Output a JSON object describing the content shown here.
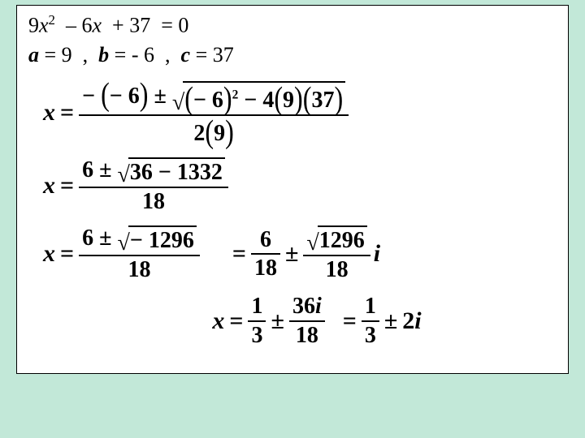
{
  "background_color": "#c2e8d8",
  "card_bg": "#ffffff",
  "border_color": "#000000",
  "font_family": "Times New Roman",
  "equation": {
    "original": {
      "a": "9",
      "b": "6",
      "c": "37",
      "var": "x",
      "rhs": "0"
    },
    "coeffs_line": {
      "a": "9",
      "b": "- 6",
      "c": "37"
    },
    "step1": {
      "neg_b": "(− 6)",
      "inside_sq": "(− 6)",
      "four": "4",
      "a_paren": "9",
      "c_paren": "37",
      "denom_two": "2",
      "denom_a": "9"
    },
    "step2": {
      "num_left": "6",
      "under_root": "36 − 1332",
      "denom": "18"
    },
    "step3": {
      "num_left": "6",
      "under_root": "− 1296",
      "denom": "18",
      "rhs_a_num": "6",
      "rhs_a_den": "18",
      "rhs_b_rootnum": "1296",
      "rhs_b_den": "18",
      "i": "i"
    },
    "step4": {
      "lhs_num": "1",
      "lhs_den": "3",
      "mid_num": "36",
      "mid_i": "i",
      "mid_den": "18",
      "rhs_num": "1",
      "rhs_den": "3",
      "rhs_tail": "2",
      "rhs_i": "i"
    }
  }
}
